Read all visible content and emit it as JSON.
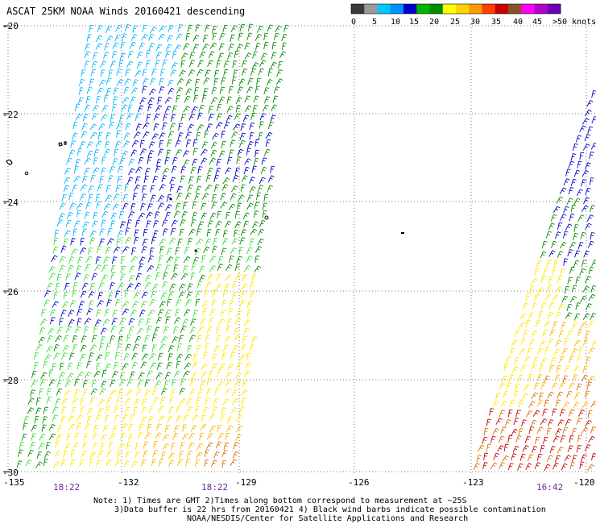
{
  "title": "ASCAT 25KM NOAA Winds 20160421 descending",
  "legend": {
    "labels": [
      "0",
      "5",
      "10",
      "15",
      "20",
      "25",
      "30",
      "35",
      "40",
      "45",
      ">50 knots"
    ],
    "colors": [
      "#3a3a3a",
      "#9a9a9a",
      "#00c8ff",
      "#0090ff",
      "#0000c8",
      "#00b400",
      "#008c00",
      "#ffff00",
      "#ffd400",
      "#ff9a00",
      "#ff4000",
      "#c80000",
      "#8c5028",
      "#ff00ff",
      "#b400c8",
      "#6e00b4"
    ]
  },
  "lat_labels": [
    "-20",
    "-22",
    "-24",
    "-26",
    "-28",
    "-30"
  ],
  "lon_labels": [
    "-135",
    "-132",
    "-129",
    "-126",
    "-123",
    "-120"
  ],
  "time_labels": [
    "18:22",
    "18:22",
    "16:42"
  ],
  "notes": [
    "Note: 1) Times are GMT 2)Times along bottom correspond to measurement at ~25S",
    "3)Data buffer is 22 hrs from 20160421 4) Black wind barbs indicate possible contamination",
    "NOAA/NESDIS/Center for Satellite Applications and Research"
  ],
  "wind_colors": {
    "light_blue": "#00b4ff",
    "blue": "#0000c8",
    "light_green": "#3cdc3c",
    "green": "#008c00",
    "yellow": "#ffe600",
    "orange": "#ffb400",
    "dark_orange": "#dc6e00",
    "red": "#c80000",
    "black": "#000000"
  }
}
